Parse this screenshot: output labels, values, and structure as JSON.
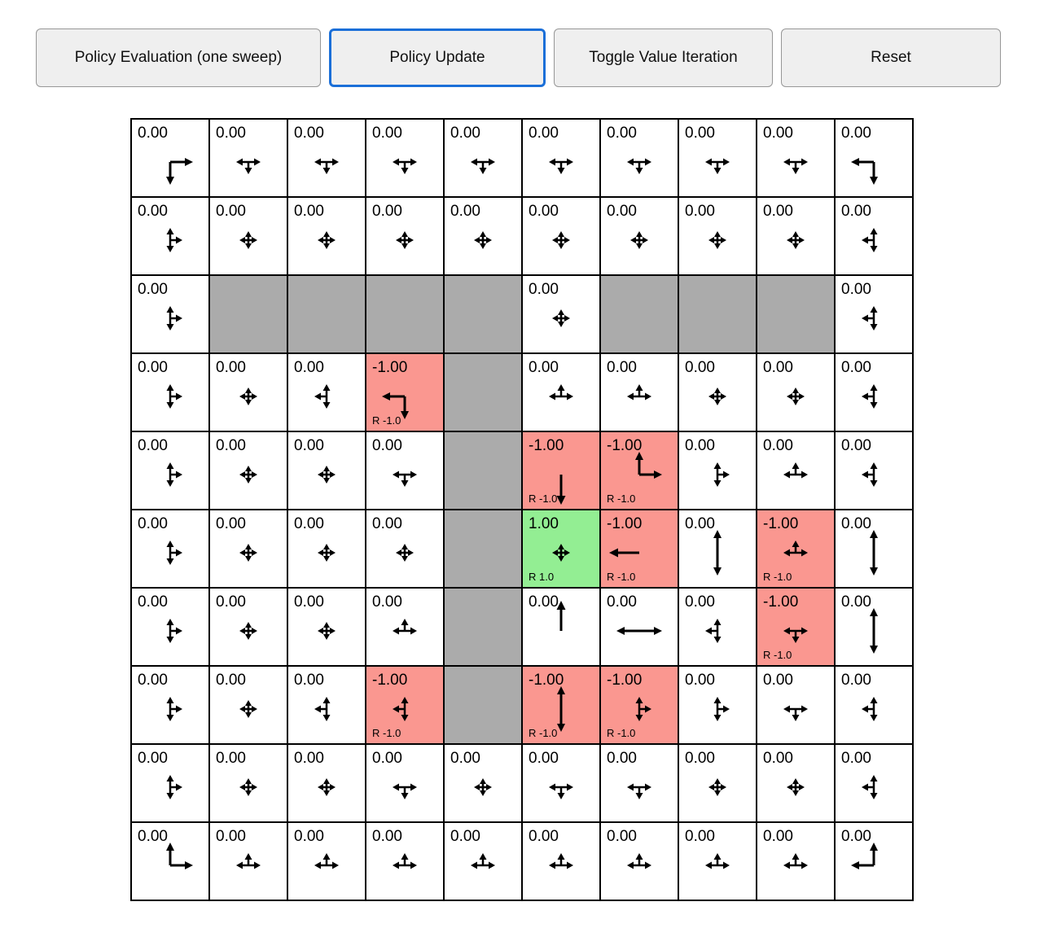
{
  "toolbar": {
    "buttons": [
      {
        "label": "Policy Evaluation (one sweep)",
        "active": false
      },
      {
        "label": "Policy Update",
        "active": true
      },
      {
        "label": "Toggle Value Iteration",
        "active": false
      },
      {
        "label": "Reset",
        "active": false
      }
    ],
    "active_border_color": "#1B6FD8"
  },
  "colors": {
    "wall": "#ABABAB",
    "negative_reward": "#FA9790",
    "positive_reward": "#93EE93",
    "cell_background": "#FFFFFF",
    "cell_border": "#000000",
    "arrow": "#000000"
  },
  "grid": {
    "rows": 10,
    "cols": 10,
    "cells": [
      {
        "value": "0.00",
        "type": "normal",
        "arrows": [
          "right",
          "down"
        ]
      },
      {
        "value": "0.00",
        "type": "normal",
        "arrows": [
          "left",
          "right",
          "down"
        ]
      },
      {
        "value": "0.00",
        "type": "normal",
        "arrows": [
          "left",
          "right",
          "down"
        ]
      },
      {
        "value": "0.00",
        "type": "normal",
        "arrows": [
          "left",
          "right",
          "down"
        ]
      },
      {
        "value": "0.00",
        "type": "normal",
        "arrows": [
          "left",
          "right",
          "down"
        ]
      },
      {
        "value": "0.00",
        "type": "normal",
        "arrows": [
          "left",
          "right",
          "down"
        ]
      },
      {
        "value": "0.00",
        "type": "normal",
        "arrows": [
          "left",
          "right",
          "down"
        ]
      },
      {
        "value": "0.00",
        "type": "normal",
        "arrows": [
          "left",
          "right",
          "down"
        ]
      },
      {
        "value": "0.00",
        "type": "normal",
        "arrows": [
          "left",
          "right",
          "down"
        ]
      },
      {
        "value": "0.00",
        "type": "normal",
        "arrows": [
          "left",
          "down"
        ]
      },
      {
        "value": "0.00",
        "type": "normal",
        "arrows": [
          "up",
          "down",
          "right"
        ]
      },
      {
        "value": "0.00",
        "type": "normal",
        "arrows": [
          "up",
          "down",
          "left",
          "right"
        ]
      },
      {
        "value": "0.00",
        "type": "normal",
        "arrows": [
          "up",
          "down",
          "left",
          "right"
        ]
      },
      {
        "value": "0.00",
        "type": "normal",
        "arrows": [
          "up",
          "down",
          "left",
          "right"
        ]
      },
      {
        "value": "0.00",
        "type": "normal",
        "arrows": [
          "up",
          "down",
          "left",
          "right"
        ]
      },
      {
        "value": "0.00",
        "type": "normal",
        "arrows": [
          "up",
          "down",
          "left",
          "right"
        ]
      },
      {
        "value": "0.00",
        "type": "normal",
        "arrows": [
          "up",
          "down",
          "left",
          "right"
        ]
      },
      {
        "value": "0.00",
        "type": "normal",
        "arrows": [
          "up",
          "down",
          "left",
          "right"
        ]
      },
      {
        "value": "0.00",
        "type": "normal",
        "arrows": [
          "up",
          "down",
          "left",
          "right"
        ]
      },
      {
        "value": "0.00",
        "type": "normal",
        "arrows": [
          "up",
          "down",
          "left"
        ]
      },
      {
        "value": "0.00",
        "type": "normal",
        "arrows": [
          "up",
          "down",
          "right"
        ]
      },
      {
        "type": "wall"
      },
      {
        "type": "wall"
      },
      {
        "type": "wall"
      },
      {
        "type": "wall"
      },
      {
        "value": "0.00",
        "type": "normal",
        "arrows": [
          "up",
          "down",
          "left",
          "right"
        ]
      },
      {
        "type": "wall"
      },
      {
        "type": "wall"
      },
      {
        "type": "wall"
      },
      {
        "value": "0.00",
        "type": "normal",
        "arrows": [
          "up",
          "down",
          "left"
        ]
      },
      {
        "value": "0.00",
        "type": "normal",
        "arrows": [
          "up",
          "down",
          "right"
        ]
      },
      {
        "value": "0.00",
        "type": "normal",
        "arrows": [
          "up",
          "down",
          "left",
          "right"
        ]
      },
      {
        "value": "0.00",
        "type": "normal",
        "arrows": [
          "up",
          "down",
          "left"
        ]
      },
      {
        "value": "-1.00",
        "type": "neg",
        "reward": "R -1.0",
        "arrows": [
          "left",
          "down"
        ]
      },
      {
        "type": "wall"
      },
      {
        "value": "0.00",
        "type": "normal",
        "arrows": [
          "up",
          "left",
          "right"
        ]
      },
      {
        "value": "0.00",
        "type": "normal",
        "arrows": [
          "up",
          "left",
          "right"
        ]
      },
      {
        "value": "0.00",
        "type": "normal",
        "arrows": [
          "up",
          "down",
          "left",
          "right"
        ]
      },
      {
        "value": "0.00",
        "type": "normal",
        "arrows": [
          "up",
          "down",
          "left",
          "right"
        ]
      },
      {
        "value": "0.00",
        "type": "normal",
        "arrows": [
          "up",
          "down",
          "left"
        ]
      },
      {
        "value": "0.00",
        "type": "normal",
        "arrows": [
          "up",
          "down",
          "right"
        ]
      },
      {
        "value": "0.00",
        "type": "normal",
        "arrows": [
          "up",
          "down",
          "left",
          "right"
        ]
      },
      {
        "value": "0.00",
        "type": "normal",
        "arrows": [
          "up",
          "down",
          "left",
          "right"
        ]
      },
      {
        "value": "0.00",
        "type": "normal",
        "arrows": [
          "down",
          "left",
          "right"
        ]
      },
      {
        "type": "wall"
      },
      {
        "value": "-1.00",
        "type": "neg",
        "reward": "R -1.0",
        "arrows": [
          "down"
        ]
      },
      {
        "value": "-1.00",
        "type": "neg",
        "reward": "R -1.0",
        "arrows": [
          "up",
          "right"
        ]
      },
      {
        "value": "0.00",
        "type": "normal",
        "arrows": [
          "up",
          "down",
          "right"
        ]
      },
      {
        "value": "0.00",
        "type": "normal",
        "arrows": [
          "up",
          "left",
          "right"
        ]
      },
      {
        "value": "0.00",
        "type": "normal",
        "arrows": [
          "up",
          "down",
          "left"
        ]
      },
      {
        "value": "0.00",
        "type": "normal",
        "arrows": [
          "up",
          "down",
          "right"
        ]
      },
      {
        "value": "0.00",
        "type": "normal",
        "arrows": [
          "up",
          "down",
          "left",
          "right"
        ]
      },
      {
        "value": "0.00",
        "type": "normal",
        "arrows": [
          "up",
          "down",
          "left",
          "right"
        ]
      },
      {
        "value": "0.00",
        "type": "normal",
        "arrows": [
          "up",
          "down",
          "left",
          "right"
        ]
      },
      {
        "type": "wall"
      },
      {
        "value": "1.00",
        "type": "pos",
        "reward": "R 1.0",
        "arrows": [
          "up",
          "down",
          "left",
          "right"
        ]
      },
      {
        "value": "-1.00",
        "type": "neg",
        "reward": "R -1.0",
        "arrows": [
          "left"
        ]
      },
      {
        "value": "0.00",
        "type": "normal",
        "arrows": [
          "up",
          "down"
        ]
      },
      {
        "value": "-1.00",
        "type": "neg",
        "reward": "R -1.0",
        "arrows": [
          "up",
          "left",
          "right"
        ]
      },
      {
        "value": "0.00",
        "type": "normal",
        "arrows": [
          "up",
          "down"
        ]
      },
      {
        "value": "0.00",
        "type": "normal",
        "arrows": [
          "up",
          "down",
          "right"
        ]
      },
      {
        "value": "0.00",
        "type": "normal",
        "arrows": [
          "up",
          "down",
          "left",
          "right"
        ]
      },
      {
        "value": "0.00",
        "type": "normal",
        "arrows": [
          "up",
          "down",
          "left",
          "right"
        ]
      },
      {
        "value": "0.00",
        "type": "normal",
        "arrows": [
          "up",
          "left",
          "right"
        ]
      },
      {
        "type": "wall"
      },
      {
        "value": "0.00",
        "type": "normal",
        "arrows": [
          "up"
        ]
      },
      {
        "value": "0.00",
        "type": "normal",
        "arrows": [
          "left",
          "right"
        ]
      },
      {
        "value": "0.00",
        "type": "normal",
        "arrows": [
          "up",
          "down",
          "left"
        ]
      },
      {
        "value": "-1.00",
        "type": "neg",
        "reward": "R -1.0",
        "arrows": [
          "down",
          "left",
          "right"
        ]
      },
      {
        "value": "0.00",
        "type": "normal",
        "arrows": [
          "up",
          "down"
        ]
      },
      {
        "value": "0.00",
        "type": "normal",
        "arrows": [
          "up",
          "down",
          "right"
        ]
      },
      {
        "value": "0.00",
        "type": "normal",
        "arrows": [
          "up",
          "down",
          "left",
          "right"
        ]
      },
      {
        "value": "0.00",
        "type": "normal",
        "arrows": [
          "up",
          "down",
          "left"
        ]
      },
      {
        "value": "-1.00",
        "type": "neg",
        "reward": "R -1.0",
        "arrows": [
          "up",
          "down",
          "left"
        ]
      },
      {
        "type": "wall"
      },
      {
        "value": "-1.00",
        "type": "neg",
        "reward": "R -1.0",
        "arrows": [
          "up",
          "down"
        ]
      },
      {
        "value": "-1.00",
        "type": "neg",
        "reward": "R -1.0",
        "arrows": [
          "up",
          "down",
          "right"
        ]
      },
      {
        "value": "0.00",
        "type": "normal",
        "arrows": [
          "up",
          "down",
          "right"
        ]
      },
      {
        "value": "0.00",
        "type": "normal",
        "arrows": [
          "down",
          "left",
          "right"
        ]
      },
      {
        "value": "0.00",
        "type": "normal",
        "arrows": [
          "up",
          "down",
          "left"
        ]
      },
      {
        "value": "0.00",
        "type": "normal",
        "arrows": [
          "up",
          "down",
          "right"
        ]
      },
      {
        "value": "0.00",
        "type": "normal",
        "arrows": [
          "up",
          "down",
          "left",
          "right"
        ]
      },
      {
        "value": "0.00",
        "type": "normal",
        "arrows": [
          "up",
          "down",
          "left",
          "right"
        ]
      },
      {
        "value": "0.00",
        "type": "normal",
        "arrows": [
          "down",
          "left",
          "right"
        ]
      },
      {
        "value": "0.00",
        "type": "normal",
        "arrows": [
          "up",
          "down",
          "left",
          "right"
        ]
      },
      {
        "value": "0.00",
        "type": "normal",
        "arrows": [
          "down",
          "left",
          "right"
        ]
      },
      {
        "value": "0.00",
        "type": "normal",
        "arrows": [
          "down",
          "left",
          "right"
        ]
      },
      {
        "value": "0.00",
        "type": "normal",
        "arrows": [
          "up",
          "down",
          "left",
          "right"
        ]
      },
      {
        "value": "0.00",
        "type": "normal",
        "arrows": [
          "up",
          "down",
          "left",
          "right"
        ]
      },
      {
        "value": "0.00",
        "type": "normal",
        "arrows": [
          "up",
          "down",
          "left"
        ]
      },
      {
        "value": "0.00",
        "type": "normal",
        "arrows": [
          "up",
          "right"
        ]
      },
      {
        "value": "0.00",
        "type": "normal",
        "arrows": [
          "up",
          "left",
          "right"
        ]
      },
      {
        "value": "0.00",
        "type": "normal",
        "arrows": [
          "up",
          "left",
          "right"
        ]
      },
      {
        "value": "0.00",
        "type": "normal",
        "arrows": [
          "up",
          "left",
          "right"
        ]
      },
      {
        "value": "0.00",
        "type": "normal",
        "arrows": [
          "up",
          "left",
          "right"
        ]
      },
      {
        "value": "0.00",
        "type": "normal",
        "arrows": [
          "up",
          "left",
          "right"
        ]
      },
      {
        "value": "0.00",
        "type": "normal",
        "arrows": [
          "up",
          "left",
          "right"
        ]
      },
      {
        "value": "0.00",
        "type": "normal",
        "arrows": [
          "up",
          "left",
          "right"
        ]
      },
      {
        "value": "0.00",
        "type": "normal",
        "arrows": [
          "up",
          "left",
          "right"
        ]
      },
      {
        "value": "0.00",
        "type": "normal",
        "arrows": [
          "up",
          "left"
        ]
      }
    ]
  }
}
